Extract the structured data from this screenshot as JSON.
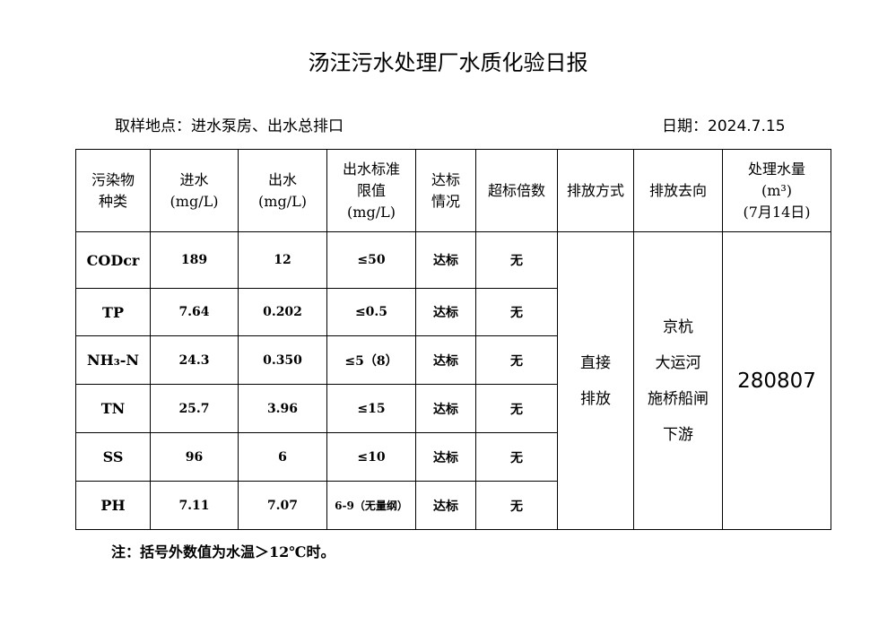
{
  "title": "汤汪污水处理厂水质化验日报",
  "sampling": "取样地点：进水泵房、出水总排口",
  "date": "日期：2024.7.15",
  "headers": [
    "污染物\n种类",
    "进水\n(mg/L)",
    "出水\n(mg/L)",
    "出水标准\n限值\n(mg/L)",
    "达标\n情况",
    "超标倍数",
    "排放方式",
    "排放去向",
    "处理水量\n(m³)\n(7月14日)"
  ],
  "rows": [
    {
      "name": "CODcr",
      "in": "189",
      "out": "12",
      "limit": "≤50",
      "status": "达标",
      "exceed": "无"
    },
    {
      "name": "TP",
      "in": "7.64",
      "out": "0.202",
      "limit": "≤0.5",
      "status": "达标",
      "exceed": "无"
    },
    {
      "name": "NH₃-N",
      "in": "24.3",
      "out": "0.350",
      "limit": "≤5（8）",
      "status": "达标",
      "exceed": "无"
    },
    {
      "name": "TN",
      "in": "25.7",
      "out": "3.96",
      "limit": "≤15",
      "status": "达标",
      "exceed": "无"
    },
    {
      "name": "SS",
      "in": "96",
      "out": "6",
      "limit": "≤10",
      "status": "达标",
      "exceed": "无"
    },
    {
      "name": "PH",
      "in": "7.11",
      "out": "7.07",
      "limit": "6-9（无量纲）",
      "status": "达标",
      "exceed": "无"
    }
  ],
  "discharge_method": "直接\n排放",
  "discharge_dest": "京杭\n大运河\n施桥船闸\n下游",
  "volume": "280807",
  "note": "注：括号外数值为水温＞12℃时。"
}
